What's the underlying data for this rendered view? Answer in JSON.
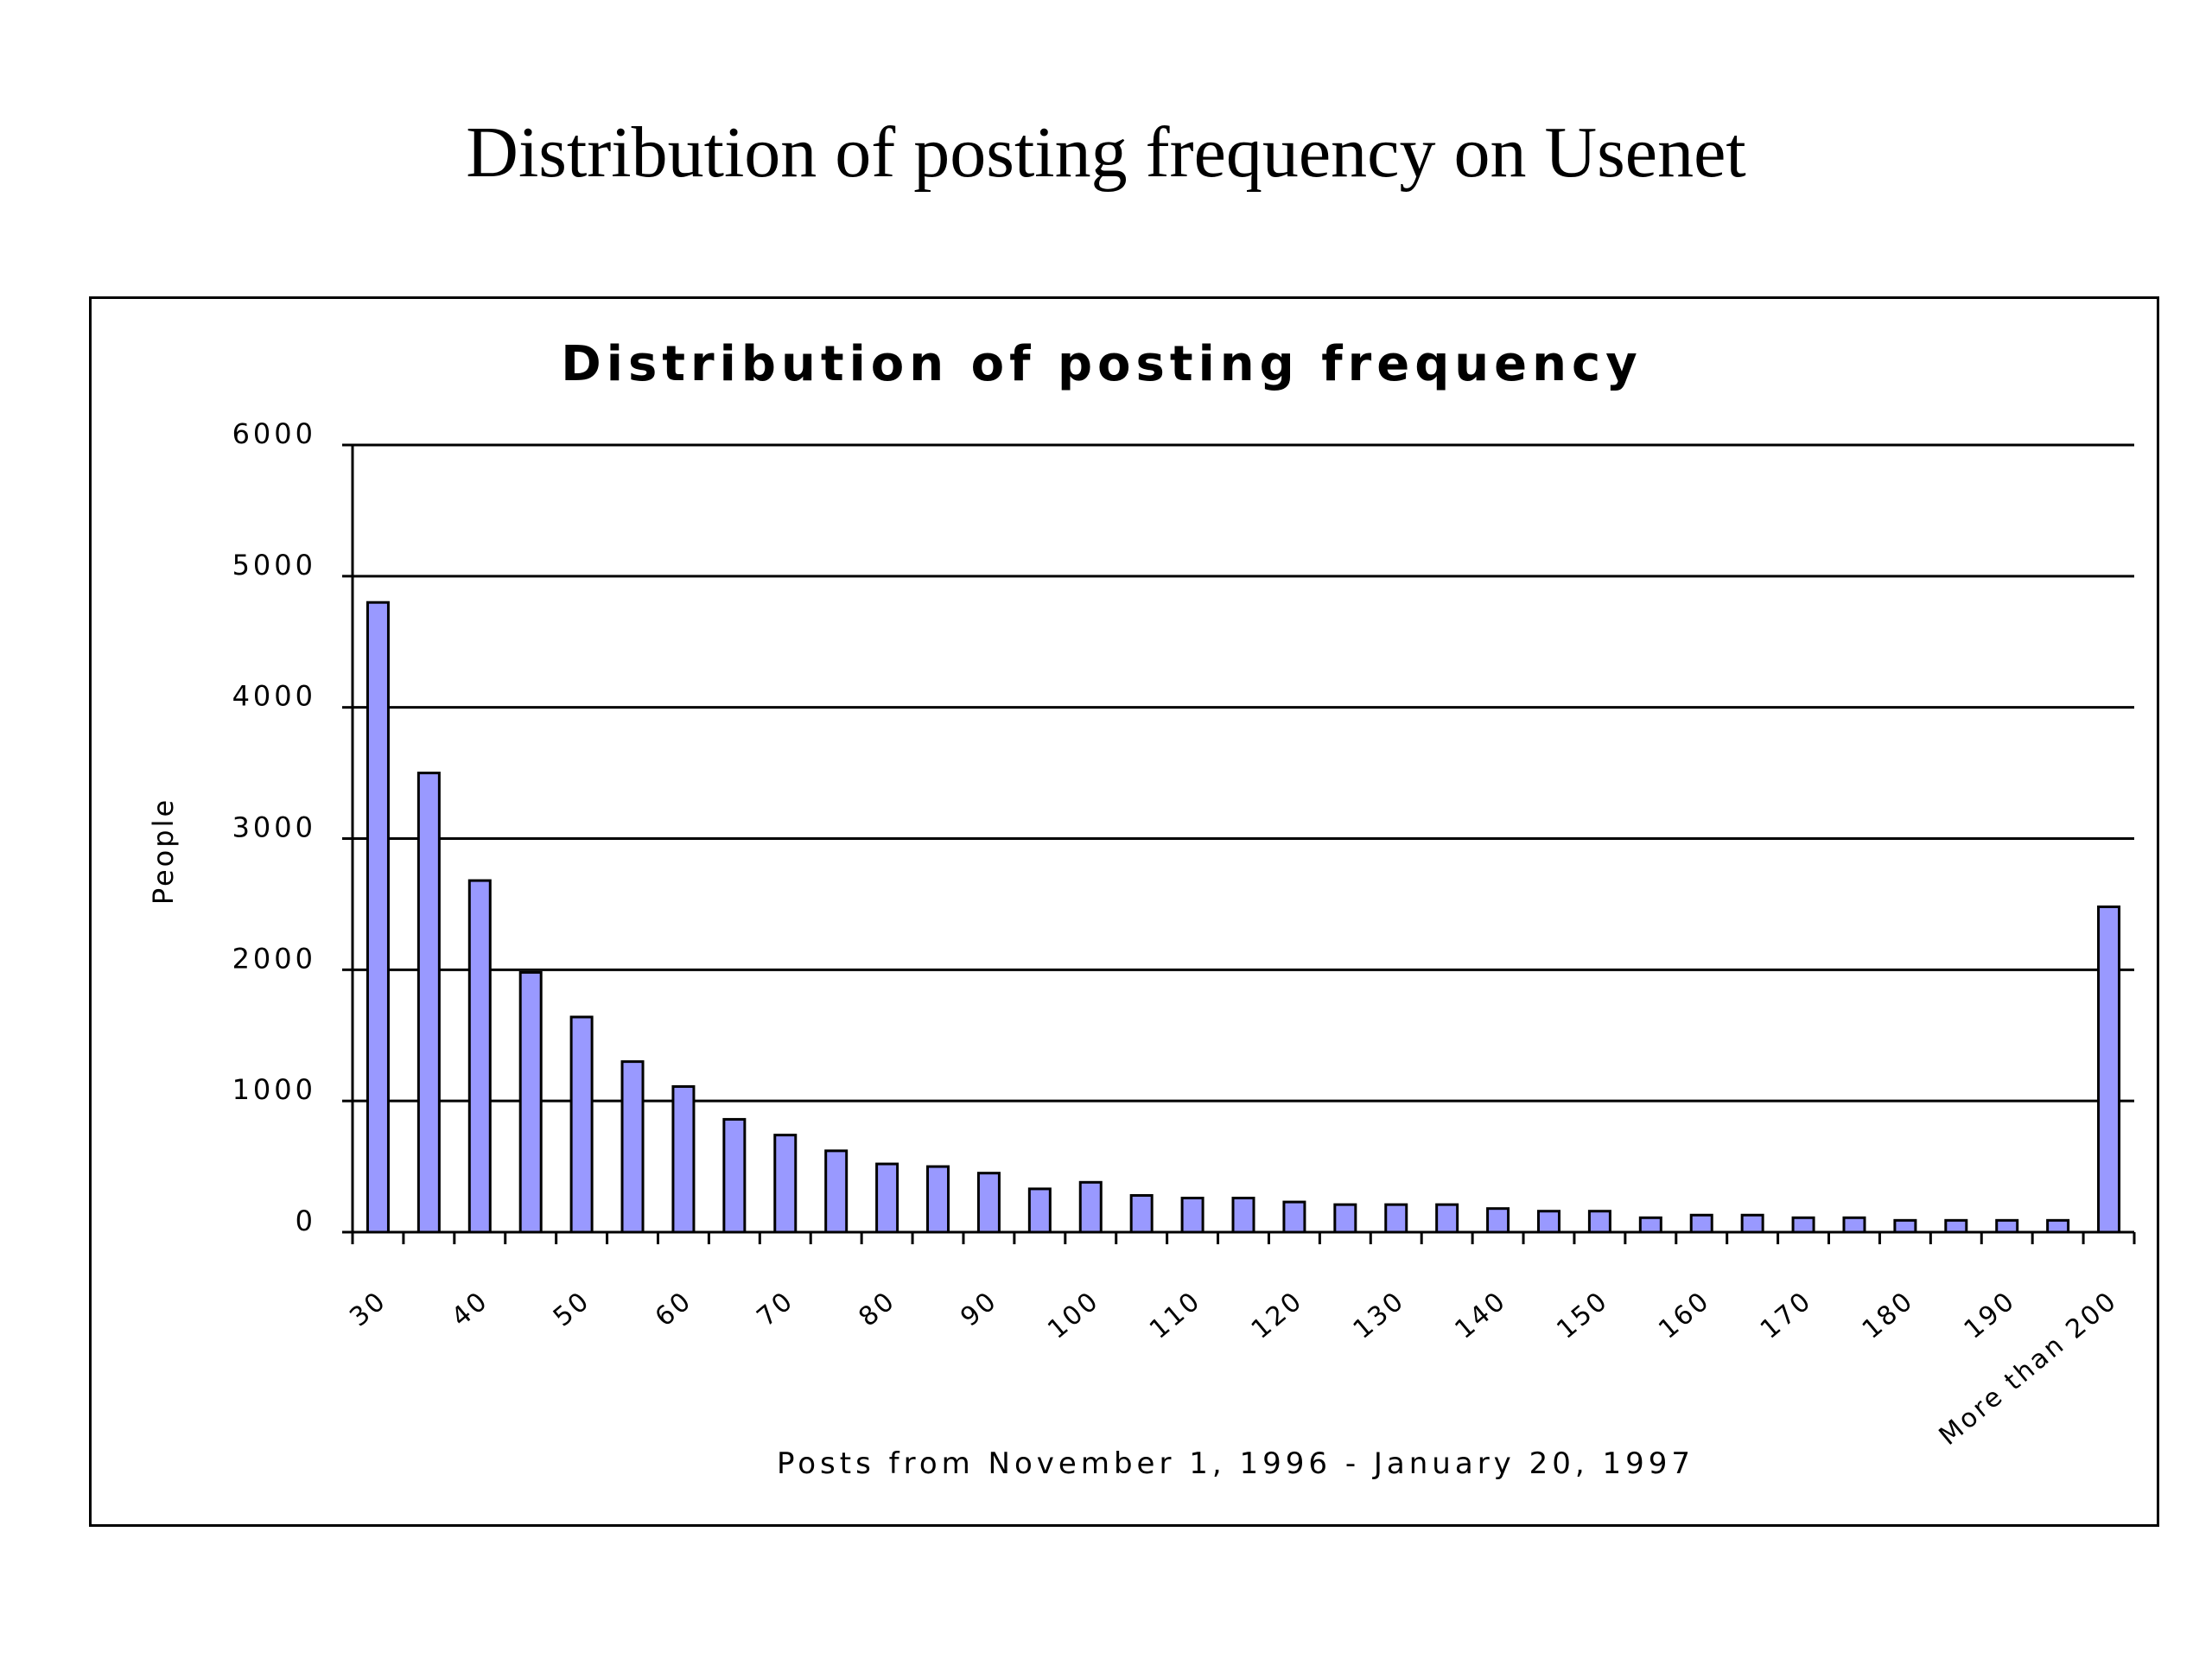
{
  "slide": {
    "title": "Distribution of posting frequency on Usenet"
  },
  "chart_data": {
    "type": "bar",
    "title": "Distribution of posting frequency",
    "xlabel": "Posts from November 1, 1996 - January 20, 1997",
    "ylabel": "People",
    "ylim": [
      0,
      6000
    ],
    "yticks": [
      "0",
      "1000",
      "2000",
      "3000",
      "4000",
      "5000",
      "6000"
    ],
    "grid": true,
    "categories": [
      "30",
      "",
      "40",
      "",
      "50",
      "",
      "60",
      "",
      "70",
      "",
      "80",
      "",
      "90",
      "",
      "100",
      "",
      "110",
      "",
      "120",
      "",
      "130",
      "",
      "140",
      "",
      "150",
      "",
      "160",
      "",
      "170",
      "",
      "180",
      "",
      "190",
      "",
      "More than 200"
    ],
    "values": [
      4800,
      3500,
      2680,
      1980,
      1640,
      1300,
      1110,
      860,
      740,
      620,
      520,
      500,
      450,
      330,
      380,
      280,
      260,
      260,
      230,
      210,
      210,
      210,
      180,
      160,
      160,
      110,
      130,
      130,
      110,
      110,
      90,
      90,
      90,
      90,
      2480
    ],
    "colors": {
      "bar_fill": "#9999ff",
      "bar_stroke": "#000000",
      "grid": "#000000"
    }
  }
}
